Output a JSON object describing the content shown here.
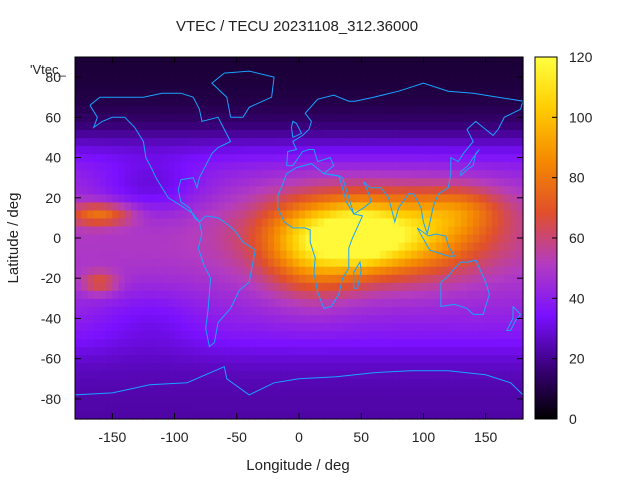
{
  "chart_data": {
    "type": "heatmap",
    "title": "VTEC / TECU 20231108_312.36000",
    "xlabel": "Longitude / deg",
    "ylabel": "Latitude / deg",
    "legend_key": "'Vtec_",
    "xlim": [
      -180,
      180
    ],
    "ylim": [
      -90,
      90
    ],
    "xticks": [
      -150,
      -100,
      -50,
      0,
      50,
      100,
      150
    ],
    "yticks": [
      -80,
      -60,
      -40,
      -20,
      0,
      20,
      40,
      60,
      80
    ],
    "colorbar": {
      "min": 0,
      "max": 120,
      "ticks": [
        0,
        20,
        40,
        60,
        80,
        100,
        120
      ],
      "palette": [
        "#000000",
        "#3a007a",
        "#7a10ff",
        "#b33cc0",
        "#e0502a",
        "#f58a00",
        "#ffcc00",
        "#ffff40"
      ]
    },
    "grid": false,
    "coastline_color": "#1aa3ff",
    "features": {
      "equatorial_crest": {
        "lon_range": [
          -20,
          160
        ],
        "lat_range": [
          -20,
          25
        ],
        "peak_value": 110,
        "peak_location": [
          50,
          0
        ]
      },
      "pacific_band": {
        "lon_range": [
          -175,
          -140
        ],
        "lat": 12,
        "value": 70
      },
      "south_pacific_patch": {
        "lon_range": [
          -170,
          -150
        ],
        "lat": -22,
        "value": 60
      },
      "polar_minimum": {
        "lat_range": [
          50,
          90
        ],
        "value": 5
      }
    }
  }
}
